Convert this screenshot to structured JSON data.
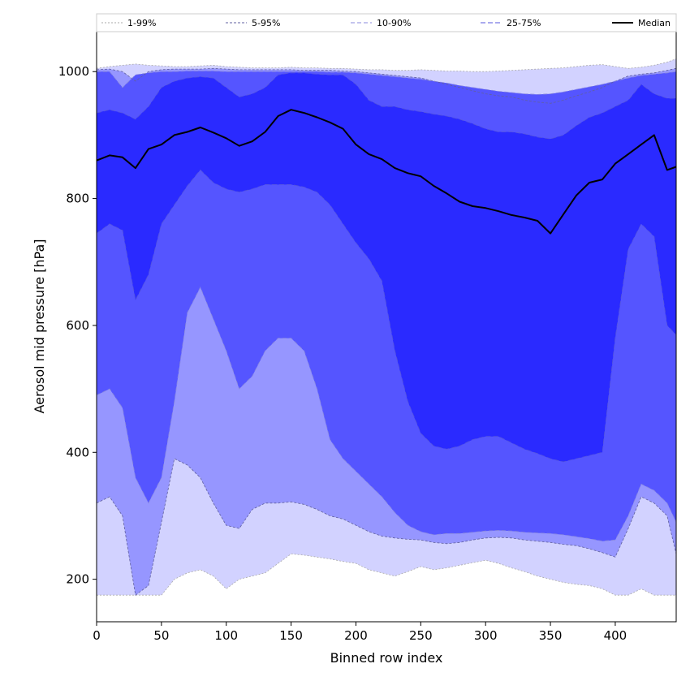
{
  "chart_data": {
    "type": "area",
    "title": "",
    "xlabel": "Binned row index",
    "ylabel": "Aerosol mid pressure [hPa]",
    "xlim": [
      0,
      447
    ],
    "ylim": [
      133,
      1063
    ],
    "xticks": [
      0,
      50,
      100,
      150,
      200,
      250,
      300,
      350,
      400
    ],
    "yticks": [
      200,
      400,
      600,
      800,
      1000
    ],
    "grid": false,
    "legend_placement": "top",
    "x": [
      0,
      10,
      20,
      30,
      40,
      50,
      60,
      70,
      80,
      90,
      100,
      110,
      120,
      130,
      140,
      150,
      160,
      170,
      180,
      190,
      200,
      210,
      220,
      230,
      240,
      250,
      260,
      270,
      280,
      290,
      300,
      310,
      320,
      330,
      340,
      350,
      360,
      370,
      380,
      390,
      400,
      410,
      420,
      430,
      440,
      447
    ],
    "bands": [
      {
        "name": "1-99%",
        "fill": "#d2d2ff",
        "lower": [
          175,
          175,
          175,
          175,
          175,
          175,
          200,
          210,
          215,
          205,
          185,
          200,
          205,
          210,
          225,
          240,
          238,
          235,
          232,
          228,
          225,
          215,
          210,
          205,
          212,
          220,
          215,
          218,
          222,
          226,
          230,
          225,
          218,
          212,
          205,
          200,
          195,
          192,
          190,
          185,
          175,
          175,
          185,
          175,
          175,
          175
        ],
        "upper": [
          1005,
          1008,
          1010,
          1012,
          1010,
          1009,
          1008,
          1008,
          1009,
          1010,
          1008,
          1007,
          1006,
          1006,
          1006,
          1007,
          1006,
          1006,
          1005,
          1005,
          1004,
          1003,
          1003,
          1002,
          1002,
          1003,
          1002,
          1001,
          1001,
          1000,
          1000,
          1001,
          1002,
          1003,
          1004,
          1005,
          1006,
          1008,
          1010,
          1011,
          1008,
          1005,
          1007,
          1010,
          1015,
          1020
        ]
      },
      {
        "name": "5-95%",
        "fill": "#9696ff",
        "lower": [
          320,
          330,
          300,
          175,
          190,
          290,
          390,
          380,
          360,
          320,
          285,
          280,
          310,
          320,
          320,
          322,
          318,
          310,
          300,
          295,
          285,
          275,
          268,
          265,
          263,
          262,
          258,
          256,
          258,
          262,
          265,
          266,
          265,
          262,
          260,
          258,
          255,
          253,
          248,
          242,
          235,
          280,
          330,
          320,
          300,
          240
        ],
        "upper": [
          1003,
          1004,
          1000,
          985,
          1000,
          1003,
          1004,
          1004,
          1004,
          1005,
          1004,
          1003,
          1003,
          1003,
          1003,
          1003,
          1002,
          1002,
          1002,
          1001,
          1000,
          998,
          996,
          994,
          992,
          990,
          985,
          980,
          975,
          970,
          965,
          962,
          960,
          955,
          952,
          950,
          955,
          962,
          968,
          975,
          985,
          993,
          996,
          998,
          1002,
          1005
        ]
      },
      {
        "name": "10-90%",
        "fill": "#5555ff",
        "lower": [
          490,
          500,
          470,
          360,
          320,
          360,
          480,
          620,
          660,
          610,
          560,
          500,
          520,
          560,
          580,
          580,
          560,
          500,
          420,
          390,
          370,
          350,
          330,
          305,
          285,
          275,
          270,
          272,
          272,
          274,
          276,
          277,
          276,
          274,
          273,
          272,
          270,
          267,
          264,
          260,
          262,
          300,
          350,
          340,
          320,
          290
        ],
        "upper": [
          1000,
          1000,
          975,
          995,
          998,
          1000,
          1000,
          1001,
          1001,
          1001,
          1000,
          1000,
          1000,
          1000,
          1000,
          1000,
          1000,
          1000,
          999,
          999,
          998,
          996,
          994,
          992,
          990,
          988,
          985,
          982,
          978,
          975,
          972,
          969,
          967,
          965,
          964,
          965,
          968,
          972,
          976,
          980,
          985,
          990,
          994,
          996,
          998,
          1000
        ]
      },
      {
        "name": "25-75%",
        "fill": "#2a2aff",
        "lower": [
          745,
          760,
          750,
          640,
          680,
          760,
          790,
          820,
          845,
          825,
          815,
          810,
          815,
          822,
          822,
          822,
          818,
          810,
          790,
          760,
          730,
          705,
          670,
          560,
          480,
          430,
          410,
          405,
          410,
          420,
          425,
          425,
          415,
          405,
          398,
          390,
          385,
          390,
          395,
          400,
          580,
          720,
          760,
          740,
          600,
          585
        ],
        "upper": [
          935,
          940,
          935,
          925,
          945,
          975,
          985,
          990,
          992,
          990,
          975,
          960,
          965,
          975,
          995,
          998,
          998,
          996,
          995,
          995,
          980,
          955,
          945,
          945,
          940,
          937,
          933,
          930,
          925,
          918,
          910,
          905,
          905,
          902,
          897,
          894,
          900,
          915,
          928,
          935,
          945,
          955,
          980,
          965,
          958,
          958
        ]
      }
    ],
    "boundary_lines": [
      {
        "name": "1-99%",
        "color": "#aaaaaa",
        "dash": "2,2"
      },
      {
        "name": "5-95%",
        "color": "#6060a0",
        "dash": "3,2"
      },
      {
        "name": "10-90%",
        "color": "#8888dd",
        "dash": "5,3"
      },
      {
        "name": "25-75%",
        "color": "#5555dd",
        "dash": "6,3"
      }
    ],
    "median": {
      "name": "Median",
      "color": "#000000",
      "values": [
        860,
        868,
        865,
        848,
        878,
        885,
        900,
        905,
        912,
        904,
        895,
        883,
        890,
        905,
        930,
        940,
        935,
        928,
        920,
        910,
        885,
        870,
        862,
        848,
        840,
        835,
        820,
        808,
        795,
        788,
        785,
        780,
        774,
        770,
        765,
        745,
        775,
        805,
        825,
        830,
        855,
        870,
        885,
        900,
        845,
        850
      ]
    }
  }
}
